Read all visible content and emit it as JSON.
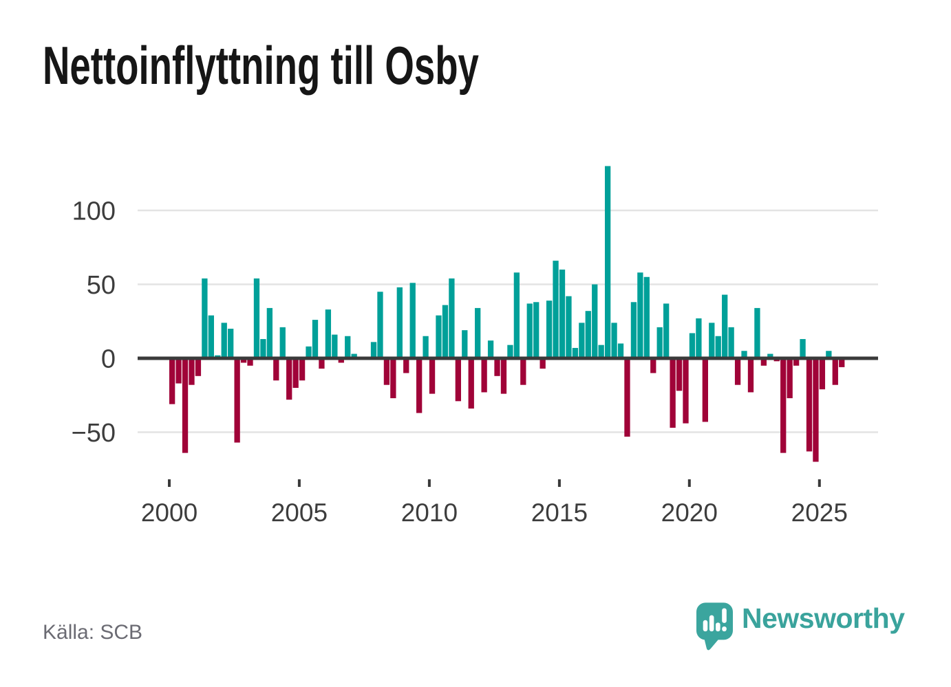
{
  "page": {
    "background": "#ffffff"
  },
  "header": {
    "title": "Nettoinflyttning till Osby"
  },
  "footer": {
    "source": "Källa: SCB",
    "logo_text": "Newsworthy",
    "logo_mark_color": "#3ba59e",
    "logo_text_color": "#3aa39c"
  },
  "chart_data": {
    "type": "bar",
    "title": "Nettoinflyttning till Osby",
    "xlabel": "",
    "ylabel": "",
    "legend": false,
    "grid": "horizontal",
    "frequency": "quarterly",
    "xticks": [
      2000,
      2005,
      2010,
      2015,
      2020,
      2025
    ],
    "yticks": [
      100,
      50,
      0,
      -50
    ],
    "ylim": [
      -78,
      138
    ],
    "categories": [
      "2000Q1",
      "2000Q2",
      "2000Q3",
      "2000Q4",
      "2001Q1",
      "2001Q2",
      "2001Q3",
      "2001Q4",
      "2002Q1",
      "2002Q2",
      "2002Q3",
      "2002Q4",
      "2003Q1",
      "2003Q2",
      "2003Q3",
      "2003Q4",
      "2004Q1",
      "2004Q2",
      "2004Q3",
      "2004Q4",
      "2005Q1",
      "2005Q2",
      "2005Q3",
      "2005Q4",
      "2006Q1",
      "2006Q2",
      "2006Q3",
      "2006Q4",
      "2007Q1",
      "2007Q2",
      "2007Q3",
      "2007Q4",
      "2008Q1",
      "2008Q2",
      "2008Q3",
      "2008Q4",
      "2009Q1",
      "2009Q2",
      "2009Q3",
      "2009Q4",
      "2010Q1",
      "2010Q2",
      "2010Q3",
      "2010Q4",
      "2011Q1",
      "2011Q2",
      "2011Q3",
      "2011Q4",
      "2012Q1",
      "2012Q2",
      "2012Q3",
      "2012Q4",
      "2013Q1",
      "2013Q2",
      "2013Q3",
      "2013Q4",
      "2014Q1",
      "2014Q2",
      "2014Q3",
      "2014Q4",
      "2015Q1",
      "2015Q2",
      "2015Q3",
      "2015Q4",
      "2016Q1",
      "2016Q2",
      "2016Q3",
      "2016Q4",
      "2017Q1",
      "2017Q2",
      "2017Q3",
      "2017Q4",
      "2018Q1",
      "2018Q2",
      "2018Q3",
      "2018Q4",
      "2019Q1",
      "2019Q2",
      "2019Q3",
      "2019Q4",
      "2020Q1",
      "2020Q2",
      "2020Q3",
      "2020Q4",
      "2021Q1",
      "2021Q2",
      "2021Q3",
      "2021Q4",
      "2022Q1",
      "2022Q2",
      "2022Q3",
      "2022Q4",
      "2023Q1",
      "2023Q2",
      "2023Q3",
      "2023Q4",
      "2024Q1",
      "2024Q2",
      "2024Q3",
      "2024Q4",
      "2025Q1",
      "2025Q2",
      "2025Q3",
      "2025Q4"
    ],
    "values": [
      -31,
      -17,
      -64,
      -18,
      -12,
      54,
      29,
      2,
      24,
      20,
      -57,
      -3,
      -5,
      54,
      13,
      34,
      -15,
      21,
      -28,
      -20,
      -15,
      8,
      26,
      -7,
      33,
      16,
      -3,
      15,
      3,
      0,
      0,
      11,
      45,
      -18,
      -27,
      48,
      -10,
      51,
      -37,
      15,
      -24,
      29,
      36,
      54,
      -29,
      19,
      -34,
      34,
      -23,
      12,
      -12,
      -24,
      9,
      58,
      -18,
      37,
      38,
      -7,
      39,
      66,
      60,
      42,
      7,
      24,
      32,
      50,
      9,
      130,
      24,
      10,
      -53,
      38,
      58,
      55,
      -10,
      21,
      37,
      -47,
      -22,
      -44,
      17,
      27,
      -43,
      24,
      15,
      43,
      21,
      -18,
      5,
      -23,
      34,
      -5,
      3,
      -2,
      -64,
      -27,
      -5,
      13,
      -63,
      -70,
      -21,
      5,
      -18,
      -6
    ],
    "colors": {
      "positive": "#00a099",
      "negative": "#a00338",
      "axis": "#3a3a3a",
      "gridline": "#e3e3e3",
      "tick_label": "#3d3d3d"
    }
  }
}
